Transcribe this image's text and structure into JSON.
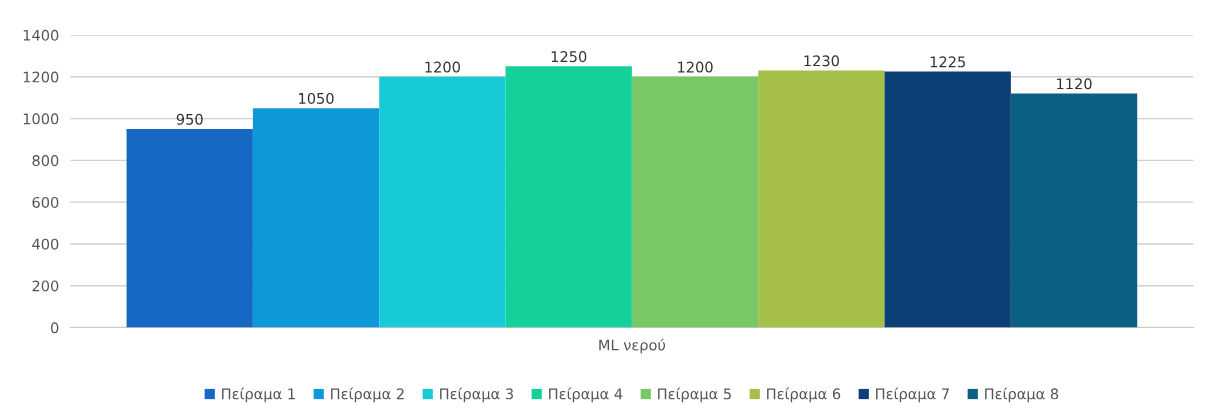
{
  "chart_data": {
    "type": "bar",
    "categories": [
      "ML νερού"
    ],
    "series": [
      {
        "name": "Πείραμα 1",
        "color": "#1767c4",
        "values": [
          950
        ]
      },
      {
        "name": "Πείραμα 2",
        "color": "#0f98d8",
        "values": [
          1050
        ]
      },
      {
        "name": "Πείραμα 3",
        "color": "#16cad8",
        "values": [
          1200
        ]
      },
      {
        "name": "Πείραμα 4",
        "color": "#14d09a",
        "values": [
          1250
        ]
      },
      {
        "name": "Πείραμα 5",
        "color": "#78c866",
        "values": [
          1200
        ]
      },
      {
        "name": "Πείραμα 6",
        "color": "#a5bf48",
        "values": [
          1230
        ]
      },
      {
        "name": "Πείραμα 7",
        "color": "#0c3f75",
        "values": [
          1225
        ]
      },
      {
        "name": "Πείραμα 8",
        "color": "#0b5f82",
        "values": [
          1120
        ]
      }
    ],
    "ylim": [
      0,
      1400
    ],
    "yticks": [
      0,
      200,
      400,
      600,
      800,
      1000,
      1200,
      1400
    ],
    "grid": "y",
    "legend": "bottom",
    "data_labels": true
  }
}
